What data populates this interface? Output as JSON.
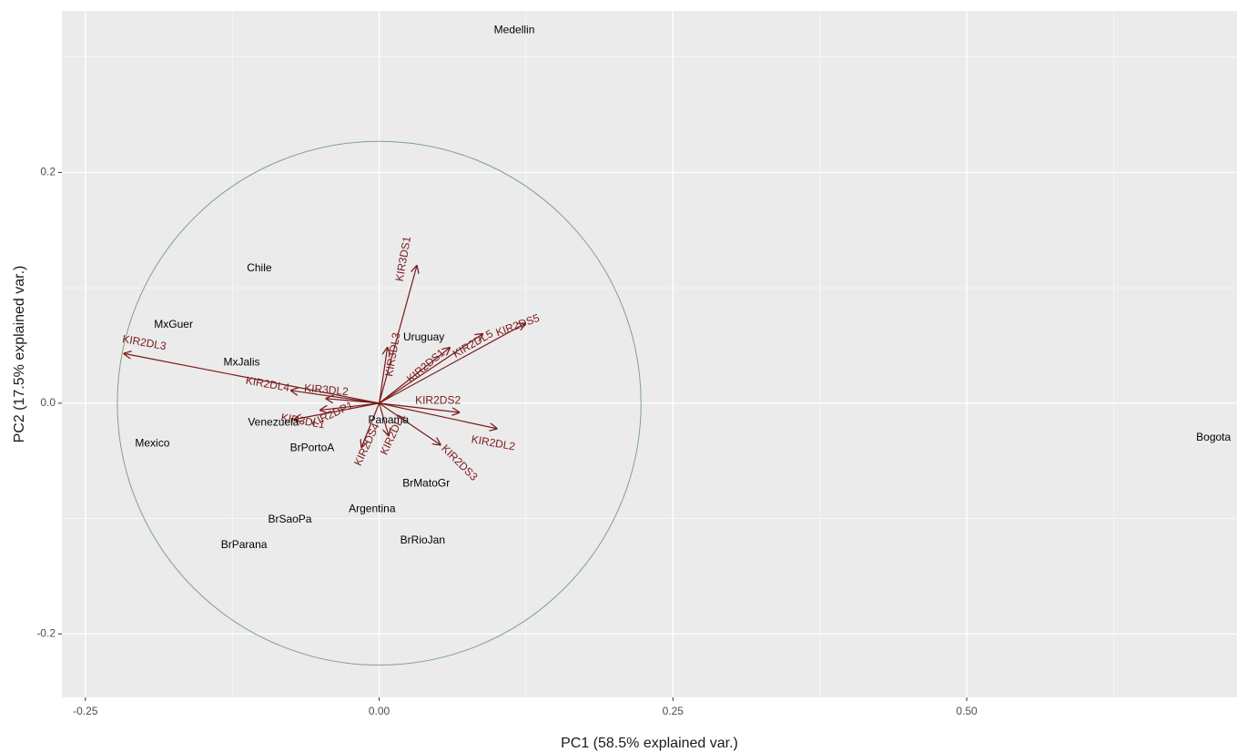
{
  "chart_data": {
    "type": "scatter",
    "subtype": "pca-biplot",
    "xlabel": "PC1 (58.5% explained var.)",
    "ylabel": "PC2 (17.5% explained var.)",
    "xlim": [
      -0.27,
      0.73
    ],
    "ylim": [
      -0.255,
      0.34
    ],
    "x_ticks": [
      -0.25,
      0.0,
      0.25,
      0.5
    ],
    "x_tick_labels": [
      "-0.25",
      "0.00",
      "0.25",
      "0.50"
    ],
    "y_ticks": [
      -0.2,
      0.0,
      0.2
    ],
    "y_tick_labels": [
      "-0.2",
      "0.0",
      "0.2"
    ],
    "grid": true,
    "panel_background": "#ebebeb",
    "grid_color": "#ffffff",
    "circle": {
      "center": [
        0.0,
        0.0
      ],
      "radius": 0.227,
      "color": "#7fa37f"
    },
    "arrow_color": "#7a1a1a",
    "points": [
      {
        "label": "Medellin",
        "x": 0.115,
        "y": 0.323
      },
      {
        "label": "Chile",
        "x": -0.102,
        "y": 0.117
      },
      {
        "label": "MxGuer",
        "x": -0.175,
        "y": 0.068
      },
      {
        "label": "MxJalis",
        "x": -0.117,
        "y": 0.035
      },
      {
        "label": "Uruguay",
        "x": 0.038,
        "y": 0.057
      },
      {
        "label": "Mexico",
        "x": -0.193,
        "y": -0.035
      },
      {
        "label": "Venezuela",
        "x": -0.09,
        "y": -0.017
      },
      {
        "label": "Panama",
        "x": 0.008,
        "y": -0.015
      },
      {
        "label": "BrPortoA",
        "x": -0.057,
        "y": -0.039
      },
      {
        "label": "BrMatoGr",
        "x": 0.04,
        "y": -0.07
      },
      {
        "label": "Argentina",
        "x": -0.006,
        "y": -0.092
      },
      {
        "label": "BrSaoPa",
        "x": -0.076,
        "y": -0.101
      },
      {
        "label": "BrParana",
        "x": -0.115,
        "y": -0.123
      },
      {
        "label": "BrRioJan",
        "x": 0.037,
        "y": -0.119
      },
      {
        "label": "Bogota",
        "x": 0.71,
        "y": -0.03
      }
    ],
    "arrows": [
      {
        "label": "KIR2DL3",
        "x": -0.217,
        "y": 0.043,
        "label_x": -0.2,
        "label_y": 0.052,
        "angle": 10
      },
      {
        "label": "KIR2DL4",
        "x": -0.075,
        "y": 0.011,
        "label_x": -0.095,
        "label_y": 0.016,
        "angle": 10
      },
      {
        "label": "KIR3DL2",
        "x": -0.045,
        "y": 0.004,
        "label_x": -0.045,
        "label_y": 0.011,
        "angle": 5
      },
      {
        "label": "KIR3DL1",
        "x": -0.072,
        "y": -0.014,
        "label_x": -0.065,
        "label_y": -0.016,
        "angle": 10
      },
      {
        "label": "KIR2DP1",
        "x": -0.05,
        "y": -0.006,
        "label_x": -0.04,
        "label_y": -0.01,
        "angle": -25
      },
      {
        "label": "KIR3DS1",
        "x": 0.032,
        "y": 0.119,
        "label_x": 0.021,
        "label_y": 0.125,
        "angle": -80
      },
      {
        "label": "KIR3DL3",
        "x": 0.007,
        "y": 0.048,
        "label_x": 0.012,
        "label_y": 0.042,
        "angle": -80
      },
      {
        "label": "KIR2DS1",
        "x": 0.06,
        "y": 0.048,
        "label_x": 0.04,
        "label_y": 0.032,
        "angle": -40
      },
      {
        "label": "KIR2DL5",
        "x": 0.088,
        "y": 0.06,
        "label_x": 0.08,
        "label_y": 0.051,
        "angle": -30
      },
      {
        "label": "KIR2DS5",
        "x": 0.124,
        "y": 0.069,
        "label_x": 0.118,
        "label_y": 0.067,
        "angle": -20
      },
      {
        "label": "KIR2DS2",
        "x": 0.068,
        "y": -0.008,
        "label_x": 0.05,
        "label_y": 0.002,
        "angle": 0
      },
      {
        "label": "KIR2DL2",
        "x": 0.1,
        "y": -0.022,
        "label_x": 0.097,
        "label_y": -0.035,
        "angle": 10
      },
      {
        "label": "KIR2DS3",
        "x": 0.052,
        "y": -0.036,
        "label_x": 0.068,
        "label_y": -0.052,
        "angle": 45
      },
      {
        "label": "KIR2DS4",
        "x": -0.015,
        "y": -0.038,
        "label_x": -0.01,
        "label_y": -0.036,
        "angle": -65
      },
      {
        "label": "KIR2DL1",
        "x": 0.008,
        "y": -0.028,
        "label_x": 0.012,
        "label_y": -0.027,
        "angle": -65
      }
    ]
  }
}
